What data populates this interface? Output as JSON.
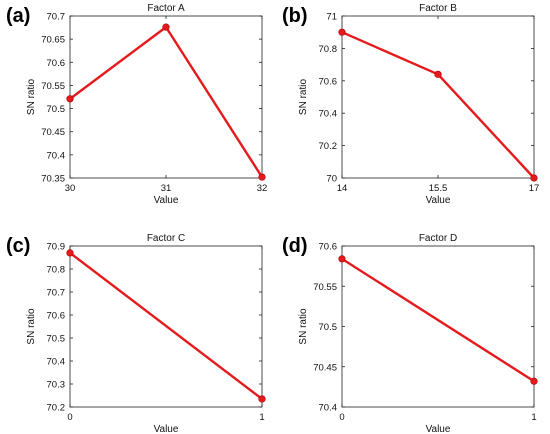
{
  "chart_data": [
    {
      "panel_label": "(a)",
      "type": "line",
      "title": "Factor A",
      "xlabel": "Value",
      "ylabel": "SN ratio",
      "x": [
        30,
        31,
        32
      ],
      "y": [
        70.521,
        70.676,
        70.352
      ],
      "xticks": [
        "30",
        "31",
        "32"
      ],
      "yticks": [
        "70.35",
        "70.4",
        "70.45",
        "70.5",
        "70.55",
        "70.6",
        "70.65",
        "70.7"
      ],
      "xlim": [
        30,
        32
      ],
      "ylim": [
        70.35,
        70.7
      ],
      "color": "#e41a1c"
    },
    {
      "panel_label": "(b)",
      "type": "line",
      "title": "Factor B",
      "xlabel": "Value",
      "ylabel": "SN ratio",
      "x": [
        14,
        15.5,
        17
      ],
      "y": [
        70.9,
        70.64,
        70.0
      ],
      "xticks": [
        "14",
        "15.5",
        "17"
      ],
      "yticks": [
        "70",
        "70.2",
        "70.4",
        "70.6",
        "70.8",
        "71"
      ],
      "xlim": [
        14,
        17
      ],
      "ylim": [
        70,
        71
      ],
      "color": "#e41a1c"
    },
    {
      "panel_label": "(c)",
      "type": "line",
      "title": "Factor C",
      "xlabel": "Value",
      "ylabel": "SN ratio",
      "x": [
        0,
        1
      ],
      "y": [
        70.87,
        70.235
      ],
      "xticks": [
        "0",
        "1"
      ],
      "yticks": [
        "70.2",
        "70.3",
        "70.4",
        "70.5",
        "70.6",
        "70.7",
        "70.8",
        "70.9"
      ],
      "xlim": [
        0,
        1
      ],
      "ylim": [
        70.2,
        70.9
      ],
      "color": "#e41a1c"
    },
    {
      "panel_label": "(d)",
      "type": "line",
      "title": "Factor D",
      "xlabel": "Value",
      "ylabel": "SN ratio",
      "x": [
        0,
        1
      ],
      "y": [
        70.584,
        70.432
      ],
      "xticks": [
        "0",
        "1"
      ],
      "yticks": [
        "70.4",
        "70.45",
        "70.5",
        "70.55",
        "70.6"
      ],
      "xlim": [
        0,
        1
      ],
      "ylim": [
        70.4,
        70.6
      ],
      "color": "#e41a1c"
    }
  ]
}
